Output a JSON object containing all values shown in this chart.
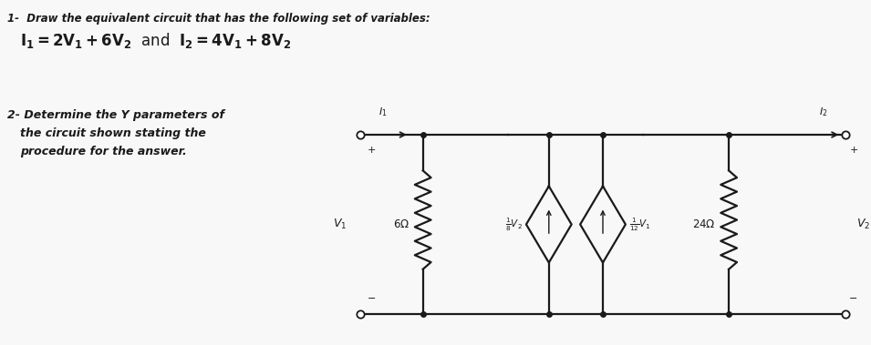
{
  "bg_color": "#f0f0f0",
  "text_color": "#1a1a1a",
  "line_color": "#1a1a1a",
  "title1": "1-  Draw the equivalent circuit that has the following set of variables:",
  "eq1a": "I",
  "eq1b": "=2V",
  "title2": "2- Determine the Y parameters of",
  "title3": "the circuit shown stating the",
  "title4": "procedure for the answer.",
  "r6_label": "6Ω",
  "r24_label": "24Ω",
  "cs1_label": "$\\frac{1}{8}V_2$",
  "cs2_label": "$\\frac{1}{12}V_1$"
}
